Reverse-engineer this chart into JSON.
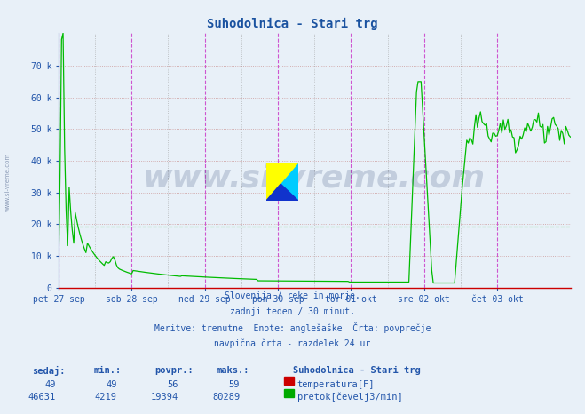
{
  "title": "Suhodolnica - Stari trg",
  "title_color": "#1a52a0",
  "bg_color": "#e8f0f8",
  "plot_bg_color": "#e8f0f8",
  "grid_color_h": "#cc9999",
  "grid_color_v_major": "#cc44cc",
  "grid_color_v_minor": "#999999",
  "axis_color": "#2255aa",
  "spine_bottom_color": "#cc0000",
  "watermark_text": "www.si-vreme.com",
  "watermark_color": "#1a3366",
  "watermark_alpha": 0.18,
  "xlim": [
    0,
    336
  ],
  "ylim": [
    0,
    80289
  ],
  "yticks": [
    0,
    10000,
    20000,
    30000,
    40000,
    50000,
    60000,
    70000
  ],
  "ytick_labels": [
    "0",
    "10 k",
    "20 k",
    "30 k",
    "40 k",
    "50 k",
    "60 k",
    "70 k"
  ],
  "day_labels": [
    "pet 27 sep",
    "sob 28 sep",
    "ned 29 sep",
    "pon 30 sep",
    "tor 01 okt",
    "sre 02 okt",
    "čet 03 okt"
  ],
  "day_positions": [
    0,
    48,
    96,
    144,
    192,
    240,
    288
  ],
  "minor_vline_positions": [
    24,
    72,
    120,
    168,
    216,
    264,
    312
  ],
  "subtitle_lines": [
    "Slovenija / reke in morje.",
    "zadnji teden / 30 minut.",
    "Meritve: trenutne  Enote: anglešaške  Črta: povprečje",
    "navpična črta - razdelek 24 ur"
  ],
  "footer_station": "Suhodolnica - Stari trg",
  "footer_row1": [
    "49",
    "49",
    "56",
    "59"
  ],
  "footer_row2": [
    "46631",
    "4219",
    "19394",
    "80289"
  ],
  "legend_temp_color": "#cc0000",
  "legend_flow_color": "#00aa00",
  "flow_line_color": "#00bb00",
  "avg_line_value": 19394,
  "font_family": "monospace"
}
